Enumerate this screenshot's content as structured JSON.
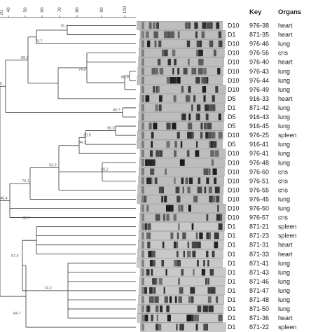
{
  "scale": {
    "ticks": [
      "40",
      "50",
      "60",
      "70",
      "80",
      "90",
      "100"
    ],
    "first_tick_partial": "20"
  },
  "headers": {
    "key": "Key",
    "organs": "Organs"
  },
  "rows": [
    {
      "day": "D10",
      "key": "976-38",
      "organ": "heart"
    },
    {
      "day": "D1",
      "key": "871-35",
      "organ": "heart"
    },
    {
      "day": "D10",
      "key": "976-46",
      "organ": "lung"
    },
    {
      "day": "D10",
      "key": "976-56",
      "organ": "cns"
    },
    {
      "day": "D10",
      "key": "976-40",
      "organ": "heart"
    },
    {
      "day": "D10",
      "key": "976-43",
      "organ": "lung"
    },
    {
      "day": "D10",
      "key": "976-44",
      "organ": "lung"
    },
    {
      "day": "D10",
      "key": "976-49",
      "organ": "lung"
    },
    {
      "day": "D5",
      "key": "916-33",
      "organ": "heart"
    },
    {
      "day": "D1",
      "key": "871-42",
      "organ": "lung"
    },
    {
      "day": "D5",
      "key": "916-43",
      "organ": "lung"
    },
    {
      "day": "D5",
      "key": "916-45",
      "organ": "lung"
    },
    {
      "day": "D10",
      "key": "976-25",
      "organ": "spleen"
    },
    {
      "day": "D5",
      "key": "916-41",
      "organ": "lung"
    },
    {
      "day": "D10",
      "key": "976-41",
      "organ": "lung"
    },
    {
      "day": "D10",
      "key": "976-48",
      "organ": "lung"
    },
    {
      "day": "D10",
      "key": "976-60",
      "organ": "cns"
    },
    {
      "day": "D10",
      "key": "976-51",
      "organ": "cns"
    },
    {
      "day": "D10",
      "key": "976-55",
      "organ": "cns"
    },
    {
      "day": "D10",
      "key": "976-45",
      "organ": "lung"
    },
    {
      "day": "D10",
      "key": "976-50",
      "organ": "lung"
    },
    {
      "day": "D10",
      "key": "976-57",
      "organ": "cns"
    },
    {
      "day": "D1",
      "key": "871-21",
      "organ": "spleen"
    },
    {
      "day": "D1",
      "key": "871-23",
      "organ": "spleen"
    },
    {
      "day": "D1",
      "key": "871-31",
      "organ": "heart"
    },
    {
      "day": "D1",
      "key": "871-33",
      "organ": "heart"
    },
    {
      "day": "D1",
      "key": "871-41",
      "organ": "lung"
    },
    {
      "day": "D1",
      "key": "871-43",
      "organ": "lung"
    },
    {
      "day": "D1",
      "key": "871-46",
      "organ": "lung"
    },
    {
      "day": "D1",
      "key": "871-47",
      "organ": "lung"
    },
    {
      "day": "D1",
      "key": "871-48",
      "organ": "lung"
    },
    {
      "day": "D1",
      "key": "871-50",
      "organ": "lung"
    },
    {
      "day": "D1",
      "key": "871-36",
      "organ": "heart"
    },
    {
      "day": "D1",
      "key": "871-22",
      "organ": "spleen"
    }
  ],
  "node_labels": [
    "75.3",
    "79.7",
    "59.5",
    "88.0",
    "74.0",
    "0",
    "45.7",
    "96.0",
    "90.9",
    "84.1",
    "53.9",
    "90.2",
    "73.1",
    "46.4",
    "66.7",
    "57.4",
    "74.2",
    "84.7"
  ]
}
